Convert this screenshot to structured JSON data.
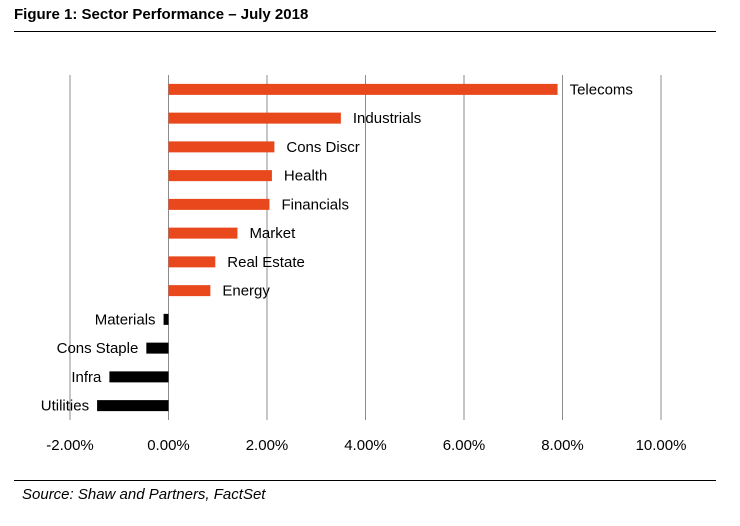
{
  "figure": {
    "title": "Figure 1: Sector Performance – July 2018",
    "source": "Source: Shaw and Partners, FactSet"
  },
  "chart_data": {
    "type": "bar",
    "orientation": "horizontal",
    "categories": [
      "Telecoms",
      "Industrials",
      "Cons Discr",
      "Health",
      "Financials",
      "Market",
      "Real Estate",
      "Energy",
      "Materials",
      "Cons Staple",
      "Infra",
      "Utilities"
    ],
    "values": [
      7.9,
      3.5,
      2.15,
      2.1,
      2.05,
      1.4,
      0.95,
      0.85,
      -0.1,
      -0.45,
      -1.2,
      -1.45
    ],
    "unit": "%",
    "xlim": [
      -2,
      10
    ],
    "xticks": [
      -2,
      0,
      2,
      4,
      6,
      8,
      10
    ],
    "xtick_labels": [
      "-2.00%",
      "0.00%",
      "2.00%",
      "4.00%",
      "6.00%",
      "8.00%",
      "10.00%"
    ],
    "grid": "vertical",
    "colors": {
      "positive": "#E8481C",
      "negative": "#000000",
      "grid": "#8C8C8C"
    },
    "legend": "none"
  }
}
